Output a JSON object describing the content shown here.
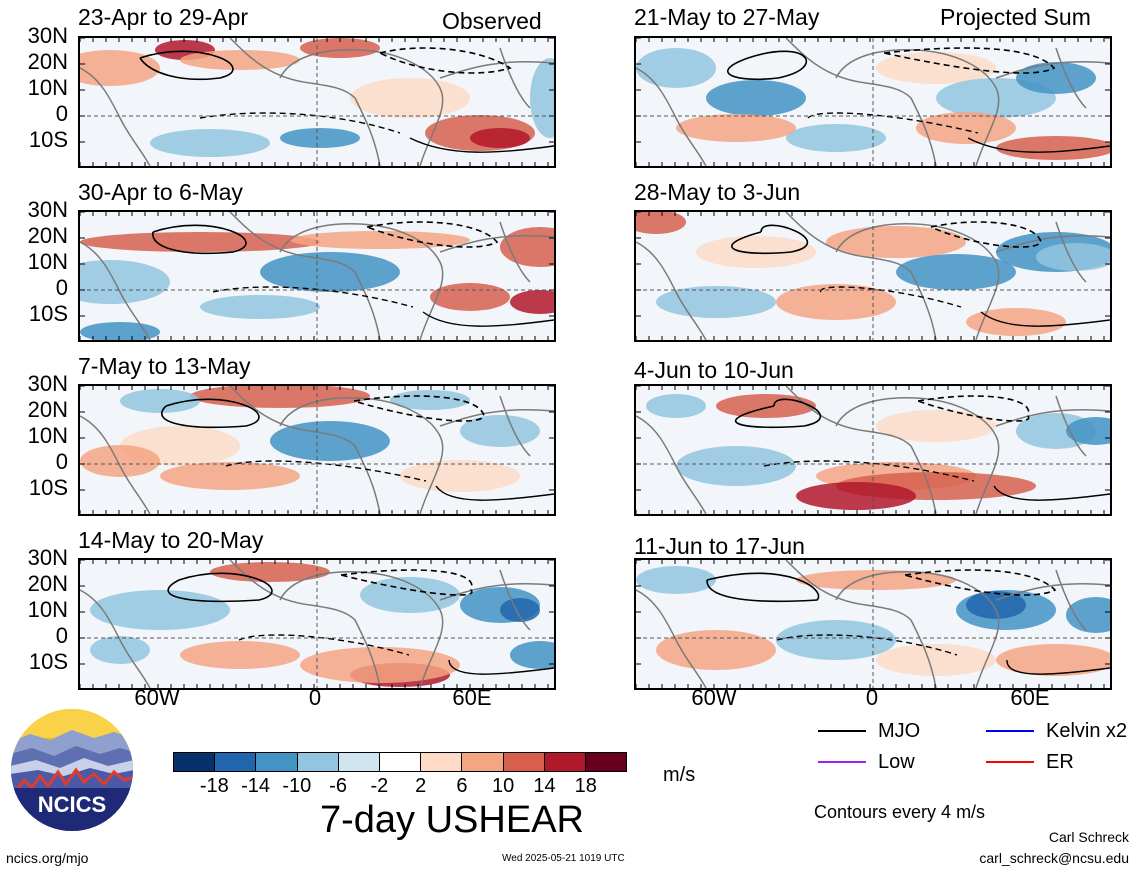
{
  "headings": {
    "left": "Observed",
    "right": "Projected Sum"
  },
  "panels_left": [
    {
      "title": "23-Apr to 29-Apr"
    },
    {
      "title": "30-Apr to 6-May"
    },
    {
      "title": "7-May to 13-May"
    },
    {
      "title": "14-May to 20-May"
    }
  ],
  "panels_right": [
    {
      "title": "21-May to 27-May"
    },
    {
      "title": "28-May to 3-Jun"
    },
    {
      "title": "4-Jun to 10-Jun"
    },
    {
      "title": "11-Jun to 17-Jun"
    }
  ],
  "y_axis_labels": [
    "30N",
    "20N",
    "10N",
    "0",
    "10S"
  ],
  "x_axis_labels": [
    "60W",
    "0",
    "60E"
  ],
  "colorbar": {
    "ticks": [
      "-18",
      "-14",
      "-10",
      "-6",
      "-2",
      "2",
      "6",
      "10",
      "14",
      "18"
    ],
    "colors": [
      "#08306b",
      "#2166ac",
      "#4393c3",
      "#92c5de",
      "#d1e5f0",
      "#ffffff",
      "#fddbc7",
      "#f4a582",
      "#d6604d",
      "#b2182b",
      "#67001f"
    ],
    "unit": "m/s",
    "title": "7-day USHEAR"
  },
  "legend": {
    "items": [
      {
        "label": "MJO",
        "color": "#000000"
      },
      {
        "label": "Kelvin x2",
        "color": "#0000ff"
      },
      {
        "label": "Low",
        "color": "#a020f0"
      },
      {
        "label": "ER",
        "color": "#ff0000"
      }
    ],
    "contours_note": "Contours every 4 m/s"
  },
  "logo": {
    "text": "NCICS"
  },
  "footer": {
    "site": "ncics.org/mjo",
    "timestamp": "Wed 2025-05-21 1019 UTC",
    "author": "Carl Schreck",
    "email": "carl_schreck@ncsu.edu"
  }
}
